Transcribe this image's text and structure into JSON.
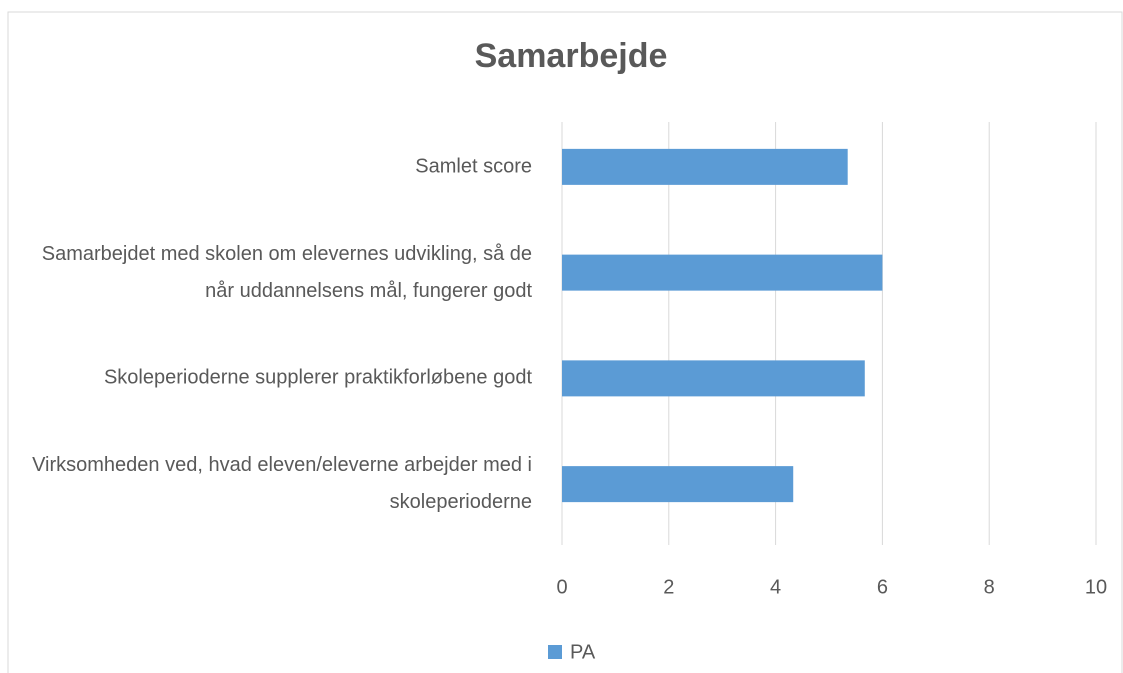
{
  "chart_data": {
    "type": "bar",
    "orientation": "horizontal",
    "title": "Samarbejde",
    "categories": [
      "Samlet score",
      "Samarbejdet med skolen om elevernes udvikling, så de når uddannelsens mål, fungerer godt",
      "Skoleperioderne supplerer praktikforløbene godt",
      "Virksomheden ved, hvad eleven/eleverne arbejder med i skoleperioderne"
    ],
    "series": [
      {
        "name": "PA",
        "color": "#5b9bd5",
        "values": [
          5.35,
          6.0,
          5.67,
          4.33
        ]
      }
    ],
    "xlim": [
      0,
      10
    ],
    "xticks": [
      0,
      2,
      4,
      6,
      8,
      10
    ],
    "grid": true,
    "legend": "bottom"
  }
}
